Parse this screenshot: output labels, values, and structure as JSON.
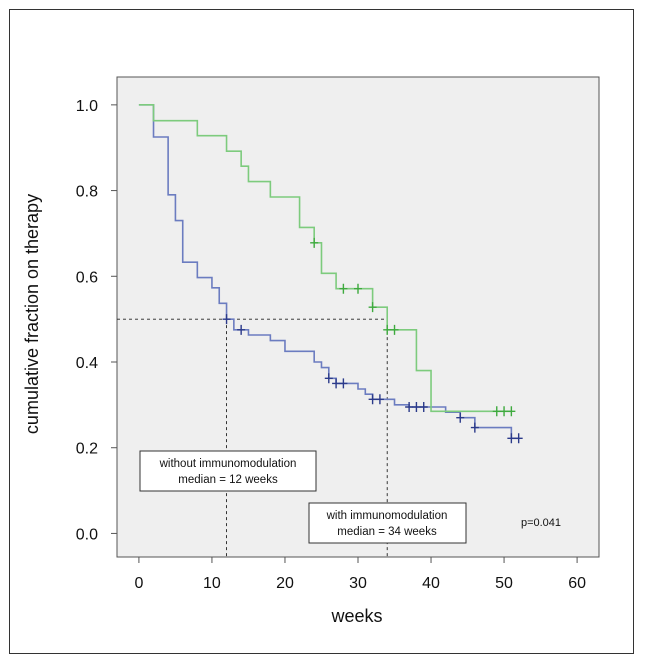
{
  "chart_data": {
    "type": "line",
    "subtype": "kaplan-meier step",
    "title": "",
    "xlabel": "weeks",
    "ylabel": "cumulative fraction on therapy",
    "xlim": [
      -3,
      63
    ],
    "ylim": [
      -0.055,
      1.065
    ],
    "xticks": [
      "0",
      "10",
      "20",
      "30",
      "40",
      "50",
      "60"
    ],
    "xtick_values": [
      0,
      10,
      20,
      30,
      40,
      50,
      60
    ],
    "yticks": [
      "0.0",
      "0.2",
      "0.4",
      "0.6",
      "0.8",
      "1.0"
    ],
    "ytick_values": [
      0.0,
      0.2,
      0.4,
      0.6,
      0.8,
      1.0
    ],
    "grid": false,
    "median_line": {
      "y": 0.5,
      "x_values": [
        12,
        34
      ]
    },
    "series": [
      {
        "name": "without immunomodulation",
        "color": "#6B7CC0",
        "censor_color": "#2B3A8A",
        "steps": [
          [
            0,
            1.0
          ],
          [
            2,
            0.925
          ],
          [
            4,
            0.79
          ],
          [
            5,
            0.73
          ],
          [
            6,
            0.633
          ],
          [
            8,
            0.597
          ],
          [
            10,
            0.573
          ],
          [
            11,
            0.537
          ],
          [
            12,
            0.5
          ],
          [
            13,
            0.475
          ],
          [
            15,
            0.463
          ],
          [
            18,
            0.45
          ],
          [
            20,
            0.425
          ],
          [
            24,
            0.4
          ],
          [
            25,
            0.387
          ],
          [
            26,
            0.362
          ],
          [
            27,
            0.35
          ],
          [
            30,
            0.337
          ],
          [
            31,
            0.325
          ],
          [
            32,
            0.313
          ],
          [
            35,
            0.3
          ],
          [
            37,
            0.295
          ],
          [
            42,
            0.283
          ],
          [
            44,
            0.27
          ],
          [
            46,
            0.247
          ],
          [
            51,
            0.222
          ],
          [
            52,
            0.222
          ]
        ],
        "censored": [
          [
            12,
            0.5
          ],
          [
            14,
            0.475
          ],
          [
            26,
            0.362
          ],
          [
            27,
            0.35
          ],
          [
            28,
            0.35
          ],
          [
            32,
            0.313
          ],
          [
            33,
            0.313
          ],
          [
            37,
            0.295
          ],
          [
            38,
            0.295
          ],
          [
            39,
            0.295
          ],
          [
            44,
            0.27
          ],
          [
            46,
            0.247
          ],
          [
            51,
            0.222
          ],
          [
            52,
            0.222
          ]
        ]
      },
      {
        "name": "with immunomodulation",
        "color": "#7DCB7D",
        "censor_color": "#3EAA3E",
        "steps": [
          [
            0,
            1.0
          ],
          [
            2,
            0.963
          ],
          [
            8,
            0.928
          ],
          [
            12,
            0.892
          ],
          [
            14,
            0.857
          ],
          [
            15,
            0.821
          ],
          [
            18,
            0.785
          ],
          [
            22,
            0.714
          ],
          [
            24,
            0.678
          ],
          [
            25,
            0.607
          ],
          [
            27,
            0.571
          ],
          [
            32,
            0.528
          ],
          [
            34,
            0.475
          ],
          [
            36,
            0.475
          ],
          [
            38,
            0.38
          ],
          [
            40,
            0.285
          ],
          [
            51,
            0.285
          ]
        ],
        "censored": [
          [
            24,
            0.678
          ],
          [
            28,
            0.571
          ],
          [
            30,
            0.571
          ],
          [
            32,
            0.528
          ],
          [
            34,
            0.475
          ],
          [
            35,
            0.475
          ],
          [
            49,
            0.285
          ],
          [
            50,
            0.285
          ],
          [
            51,
            0.285
          ]
        ]
      }
    ],
    "annotations": {
      "box_without": [
        "without immunomodulation",
        "median = 12 weeks"
      ],
      "box_with": [
        "with immunomodulation",
        "median = 34 weeks"
      ],
      "pvalue": "p=0.041"
    }
  }
}
